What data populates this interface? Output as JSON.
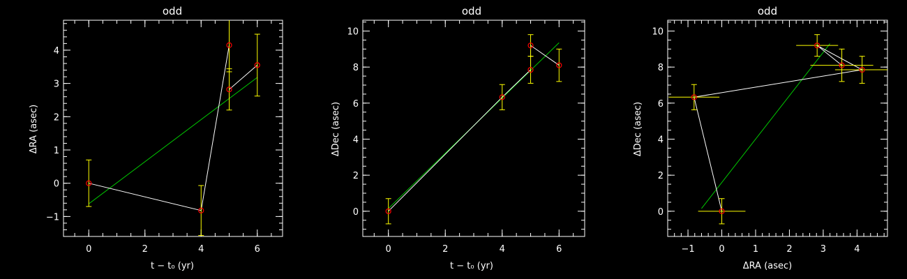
{
  "colors": {
    "background": "#000000",
    "axes": "#ffffff",
    "data_line": "#ffffff",
    "fit_line": "#00c800",
    "error_bars": "#ffff00",
    "markers": "#ff0000"
  },
  "chart_data": [
    {
      "type": "scatter",
      "title": "odd",
      "xlabel": "t − t₀ (yr)",
      "ylabel": "ΔRA (asec)",
      "xlim": [
        -0.9,
        6.9
      ],
      "ylim": [
        -1.6,
        4.9
      ],
      "xticks": [
        0,
        2,
        4,
        6
      ],
      "yticks": [
        -1,
        0,
        1,
        2,
        3,
        4
      ],
      "xtick_labels": [
        "0",
        "2",
        "4",
        "6"
      ],
      "ytick_labels": [
        "−1",
        "0",
        "1",
        "2",
        "3",
        "4"
      ],
      "x_minor_step": 0.5,
      "y_minor_step": 0.2,
      "points": [
        {
          "x": 0,
          "y": 0.0,
          "yerr": 0.7
        },
        {
          "x": 4,
          "y": -0.82,
          "yerr": 0.75
        },
        {
          "x": 5,
          "y": 4.15,
          "yerr": 0.8
        },
        {
          "x": 5,
          "y": 2.82,
          "yerr": 0.62
        },
        {
          "x": 6,
          "y": 3.55,
          "yerr": 0.93
        }
      ],
      "data_line": [
        [
          0,
          0.0
        ],
        [
          4,
          -0.82
        ],
        [
          5,
          4.15
        ],
        [
          5,
          2.82
        ],
        [
          6,
          3.55
        ]
      ],
      "fit_line": [
        [
          0,
          -0.62
        ],
        [
          6,
          3.18
        ]
      ]
    },
    {
      "type": "scatter",
      "title": "odd",
      "xlabel": "t − t₀ (yr)",
      "ylabel": "ΔDec (asec)",
      "xlim": [
        -0.9,
        6.9
      ],
      "ylim": [
        -1.4,
        10.6
      ],
      "xticks": [
        0,
        2,
        4,
        6
      ],
      "yticks": [
        0,
        2,
        4,
        6,
        8,
        10
      ],
      "xtick_labels": [
        "0",
        "2",
        "4",
        "6"
      ],
      "ytick_labels": [
        "0",
        "2",
        "4",
        "6",
        "8",
        "10"
      ],
      "x_minor_step": 0.5,
      "y_minor_step": 0.5,
      "points": [
        {
          "x": 0,
          "y": 0.0,
          "yerr": 0.7
        },
        {
          "x": 4,
          "y": 6.33,
          "yerr": 0.7
        },
        {
          "x": 5,
          "y": 9.2,
          "yerr": 0.6
        },
        {
          "x": 5,
          "y": 7.85,
          "yerr": 0.75
        },
        {
          "x": 6,
          "y": 8.1,
          "yerr": 0.9
        }
      ],
      "data_line": [
        [
          0,
          0.0
        ],
        [
          4,
          6.33
        ],
        [
          5,
          7.85
        ],
        [
          5,
          9.2
        ],
        [
          6,
          8.1
        ]
      ],
      "fit_line": [
        [
          0,
          0.15
        ],
        [
          6,
          9.35
        ]
      ]
    },
    {
      "type": "scatter",
      "title": "odd",
      "xlabel": "ΔRA (asec)",
      "ylabel": "ΔDec (asec)",
      "xlim": [
        -1.6,
        4.9
      ],
      "ylim": [
        -1.4,
        10.6
      ],
      "xticks": [
        -1,
        0,
        1,
        2,
        3,
        4
      ],
      "yticks": [
        0,
        2,
        4,
        6,
        8,
        10
      ],
      "xtick_labels": [
        "−1",
        "0",
        "1",
        "2",
        "3",
        "4"
      ],
      "ytick_labels": [
        "0",
        "2",
        "4",
        "6",
        "8",
        "10"
      ],
      "x_minor_step": 0.2,
      "y_minor_step": 0.5,
      "points": [
        {
          "x": 0.0,
          "y": 0.0,
          "xerr": 0.7,
          "yerr": 0.7
        },
        {
          "x": -0.82,
          "y": 6.33,
          "xerr": 0.75,
          "yerr": 0.7
        },
        {
          "x": 2.82,
          "y": 9.2,
          "xerr": 0.62,
          "yerr": 0.6
        },
        {
          "x": 3.55,
          "y": 8.1,
          "xerr": 0.93,
          "yerr": 0.9
        },
        {
          "x": 4.15,
          "y": 7.85,
          "xerr": 0.8,
          "yerr": 0.75
        }
      ],
      "data_line": [
        [
          0.0,
          0.0
        ],
        [
          -0.82,
          6.33
        ],
        [
          4.15,
          7.85
        ],
        [
          2.82,
          9.2
        ],
        [
          3.55,
          8.1
        ]
      ],
      "fit_line": [
        [
          -0.6,
          0.15
        ],
        [
          3.2,
          9.3
        ]
      ]
    }
  ]
}
